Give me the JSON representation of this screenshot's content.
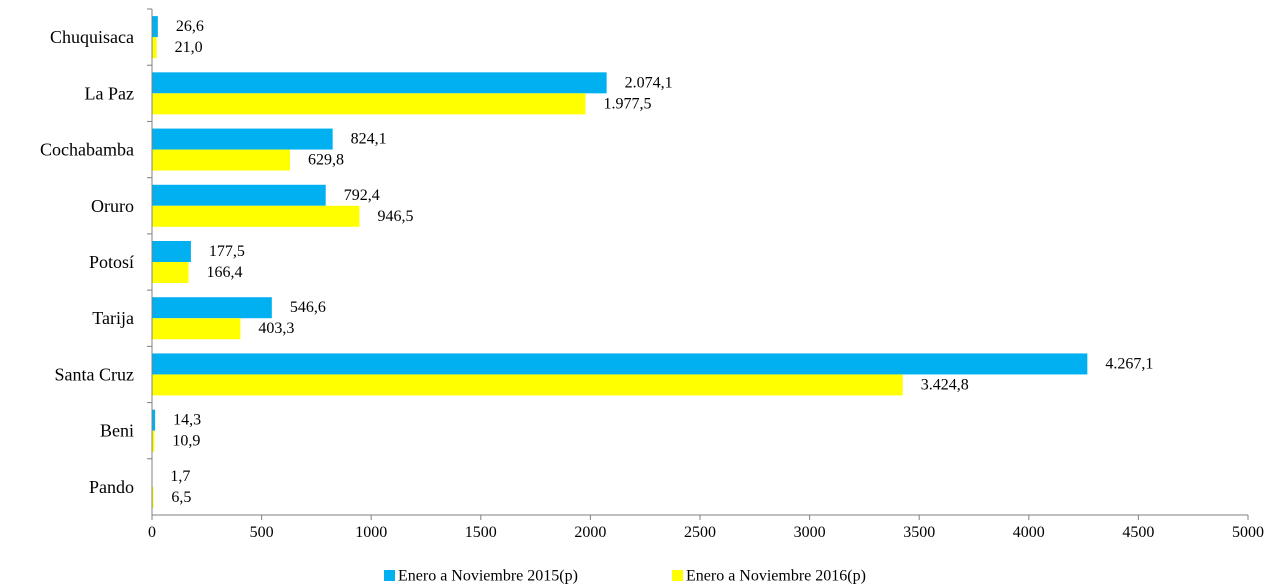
{
  "chart_data": {
    "type": "bar",
    "orientation": "horizontal",
    "categories": [
      "Chuquisaca",
      "La Paz",
      "Cochabamba",
      "Oruro",
      "Potosí",
      "Tarija",
      "Santa Cruz",
      "Beni",
      "Pando"
    ],
    "series": [
      {
        "name": "Enero a Noviembre 2015(p)",
        "color": "#00B0F0",
        "values": [
          26.6,
          2074.1,
          824.1,
          792.4,
          177.5,
          546.6,
          4267.1,
          14.3,
          1.7
        ],
        "labels": [
          "26,6",
          "2.074,1",
          "824,1",
          "792,4",
          "177,5",
          "546,6",
          "4.267,1",
          "14,3",
          "1,7"
        ]
      },
      {
        "name": "Enero a Noviembre 2016(p)",
        "color": "#FFFF00",
        "values": [
          21.0,
          1977.5,
          629.8,
          946.5,
          166.4,
          403.3,
          3424.8,
          10.9,
          6.5
        ],
        "labels": [
          "21,0",
          "1.977,5",
          "629,8",
          "946,5",
          "166,4",
          "403,3",
          "3.424,8",
          "10,9",
          "6,5"
        ]
      }
    ],
    "xlim": [
      0,
      5000
    ],
    "xticks": [
      0,
      500,
      1000,
      1500,
      2000,
      2500,
      3000,
      3500,
      4000,
      4500,
      5000
    ],
    "legend_position": "bottom",
    "grid": false
  }
}
